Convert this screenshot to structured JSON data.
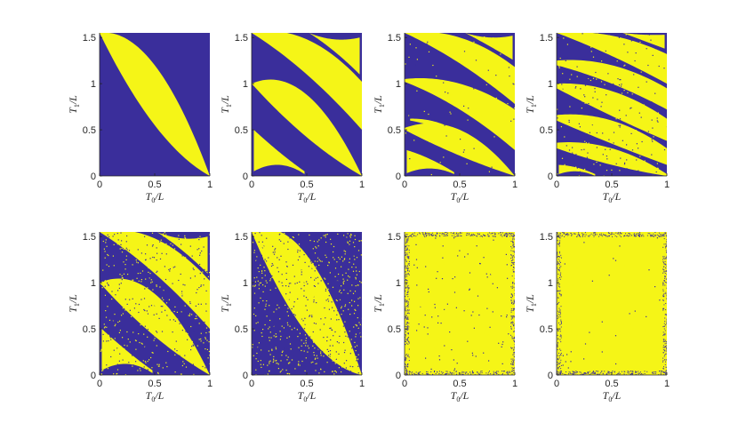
{
  "colors": {
    "background": "#3a2e9b",
    "foreground": "#f5f517",
    "axis": "#262626"
  },
  "chart_data": [
    {
      "type": "heatmap",
      "panel": "row1-col1",
      "xlabel": "T0/L",
      "ylabel": "T1/L",
      "xlim": [
        0,
        1
      ],
      "ylim": [
        0,
        1.55
      ],
      "xticks": [
        "0",
        "0.5",
        "1"
      ],
      "yticks": [
        "0",
        "0.5",
        "1",
        "1.5"
      ],
      "bands": [
        {
          "x": [
            0,
            0.5,
            1
          ],
          "lower": [
            1.55,
            0.55,
            0
          ],
          "upper": [
            1.55,
            1.2,
            0
          ]
        }
      ],
      "dither": 0
    },
    {
      "type": "heatmap",
      "panel": "row1-col2",
      "xlabel": "T0/L",
      "ylabel": "T1/L",
      "xlim": [
        0,
        1
      ],
      "ylim": [
        0,
        1.55
      ],
      "xticks": [
        "0",
        "0.5",
        "1"
      ],
      "yticks": [
        "0",
        "0.5",
        "1",
        "1.5"
      ],
      "bands": [
        {
          "x": [
            0,
            0.5,
            1
          ],
          "lower": [
            1.55,
            1.1,
            0.5
          ],
          "upper": [
            1.55,
            1.48,
            1.02
          ]
        },
        {
          "x": [
            0,
            0.5,
            1
          ],
          "lower": [
            1.0,
            0.42,
            0
          ],
          "upper": [
            1.0,
            0.88,
            0
          ]
        },
        {
          "x": [
            0.52,
            0.75,
            0.98
          ],
          "lower": [
            1.55,
            1.35,
            1.1
          ],
          "upper": [
            1.55,
            1.48,
            1.5
          ]
        },
        {
          "x": [
            0.02,
            0.25,
            0.48
          ],
          "lower": [
            0.05,
            0.12,
            0.02
          ],
          "upper": [
            0.5,
            0.26,
            0.05
          ]
        }
      ],
      "dither": 0
    },
    {
      "type": "heatmap",
      "panel": "row1-col3",
      "xlabel": "T0/L",
      "ylabel": "T1/L",
      "xlim": [
        0,
        1
      ],
      "ylim": [
        0,
        1.55
      ],
      "xticks": [
        "0",
        "0.5",
        "1"
      ],
      "yticks": [
        "0",
        "0.5",
        "1",
        "1.5"
      ],
      "bands": [
        {
          "x": [
            0,
            0.5,
            1
          ],
          "lower": [
            1.55,
            1.22,
            0.78
          ],
          "upper": [
            1.55,
            1.5,
            1.18
          ]
        },
        {
          "x": [
            0,
            0.5,
            1
          ],
          "lower": [
            1.02,
            0.72,
            0.28
          ],
          "upper": [
            1.05,
            1.0,
            0.72
          ]
        },
        {
          "x": [
            0,
            0.5,
            1
          ],
          "lower": [
            0.5,
            0.22,
            0
          ],
          "upper": [
            0.52,
            0.5,
            0
          ]
        },
        {
          "x": [
            0.55,
            0.78,
            0.98
          ],
          "lower": [
            1.55,
            1.4,
            1.26
          ],
          "upper": [
            1.55,
            1.5,
            1.52
          ]
        },
        {
          "x": [
            0.02,
            0.2,
            0.45
          ],
          "lower": [
            0.03,
            0.08,
            0.02
          ],
          "upper": [
            0.28,
            0.2,
            0.04
          ]
        },
        {
          "x": [
            0.05,
            0.3,
            0.6
          ],
          "lower": [
            0.6,
            0.52,
            0.35
          ],
          "upper": [
            0.62,
            0.58,
            0.4
          ]
        }
      ],
      "dither": 0.05
    },
    {
      "type": "heatmap",
      "panel": "row1-col4",
      "xlabel": "T0/L",
      "ylabel": "T1/L",
      "xlim": [
        0,
        1
      ],
      "ylim": [
        0,
        1.55
      ],
      "xticks": [
        "0",
        "0.5",
        "1"
      ],
      "yticks": [
        "0",
        "0.5",
        "1",
        "1.5"
      ],
      "bands": [
        {
          "x": [
            0,
            0.5,
            1
          ],
          "lower": [
            1.55,
            1.3,
            1.0
          ],
          "upper": [
            1.55,
            1.52,
            1.32
          ]
        },
        {
          "x": [
            0,
            0.5,
            1
          ],
          "lower": [
            1.2,
            1.0,
            0.72
          ],
          "upper": [
            1.25,
            1.2,
            0.95
          ]
        },
        {
          "x": [
            0,
            0.5,
            1
          ],
          "lower": [
            0.95,
            0.65,
            0.38
          ],
          "upper": [
            1.0,
            0.92,
            0.62
          ]
        },
        {
          "x": [
            0,
            0.5,
            1
          ],
          "lower": [
            0.6,
            0.35,
            0.12
          ],
          "upper": [
            0.66,
            0.6,
            0.3
          ]
        },
        {
          "x": [
            0,
            0.5,
            1
          ],
          "lower": [
            0.3,
            0.12,
            0
          ],
          "upper": [
            0.36,
            0.3,
            0.02
          ]
        },
        {
          "x": [
            0.6,
            0.8,
            0.98
          ],
          "lower": [
            1.55,
            1.46,
            1.38
          ],
          "upper": [
            1.55,
            1.53,
            1.53
          ]
        },
        {
          "x": [
            0.02,
            0.15,
            0.35
          ],
          "lower": [
            0.02,
            0.05,
            0.0
          ],
          "upper": [
            0.12,
            0.1,
            0.02
          ]
        }
      ],
      "dither": 0.14
    },
    {
      "type": "heatmap",
      "panel": "row2-col1",
      "xlabel": "T0/L",
      "ylabel": "T1/L",
      "xlim": [
        0,
        1
      ],
      "ylim": [
        0,
        1.55
      ],
      "xticks": [
        "0",
        "0.5",
        "1"
      ],
      "yticks": [
        "0",
        "0.5",
        "1",
        "1.5"
      ],
      "bands": [
        {
          "x": [
            0,
            0.5,
            1
          ],
          "lower": [
            1.55,
            1.1,
            0.5
          ],
          "upper": [
            1.55,
            1.48,
            1.02
          ]
        },
        {
          "x": [
            0,
            0.5,
            1
          ],
          "lower": [
            1.0,
            0.42,
            0
          ],
          "upper": [
            1.0,
            0.88,
            0
          ]
        },
        {
          "x": [
            0.52,
            0.75,
            0.98
          ],
          "lower": [
            1.55,
            1.35,
            1.1
          ],
          "upper": [
            1.55,
            1.48,
            1.5
          ]
        },
        {
          "x": [
            0.02,
            0.25,
            0.48
          ],
          "lower": [
            0.05,
            0.12,
            0.02
          ],
          "upper": [
            0.5,
            0.26,
            0.05
          ]
        }
      ],
      "dither": 0.3
    },
    {
      "type": "heatmap",
      "panel": "row2-col2",
      "xlabel": "T0/L",
      "ylabel": "T1/L",
      "xlim": [
        0,
        1
      ],
      "ylim": [
        0,
        1.55
      ],
      "xticks": [
        "0",
        "0.5",
        "1"
      ],
      "yticks": [
        "0",
        "0.5",
        "1",
        "1.5"
      ],
      "bands": [
        {
          "x": [
            0,
            0.5,
            1
          ],
          "lower": [
            1.55,
            0.45,
            0
          ],
          "upper": [
            1.55,
            1.3,
            0
          ]
        }
      ],
      "dither": 0.42
    },
    {
      "type": "heatmap",
      "panel": "row2-col3",
      "xlabel": "T0/L",
      "ylabel": "T1/L",
      "xlim": [
        0,
        1
      ],
      "ylim": [
        0,
        1.55
      ],
      "xticks": [
        "0",
        "0.5",
        "1"
      ],
      "yticks": [
        "0",
        "0.5",
        "1",
        "1.5"
      ],
      "bands": [
        {
          "x": [
            0,
            0.5,
            1
          ],
          "lower": [
            0,
            0,
            0
          ],
          "upper": [
            1.55,
            1.55,
            1.55
          ]
        }
      ],
      "dither": 0.1,
      "edge_noise": true
    },
    {
      "type": "heatmap",
      "panel": "row2-col4",
      "xlabel": "T0/L",
      "ylabel": "T1/L",
      "xlim": [
        0,
        1
      ],
      "ylim": [
        0,
        1.55
      ],
      "xticks": [
        "0",
        "0.5",
        "1"
      ],
      "yticks": [
        "0",
        "0.5",
        "1",
        "1.5"
      ],
      "bands": [
        {
          "x": [
            0,
            0.5,
            1
          ],
          "lower": [
            0,
            0,
            0
          ],
          "upper": [
            1.55,
            1.55,
            1.55
          ]
        }
      ],
      "dither": 0.03,
      "edge_noise": true
    }
  ]
}
